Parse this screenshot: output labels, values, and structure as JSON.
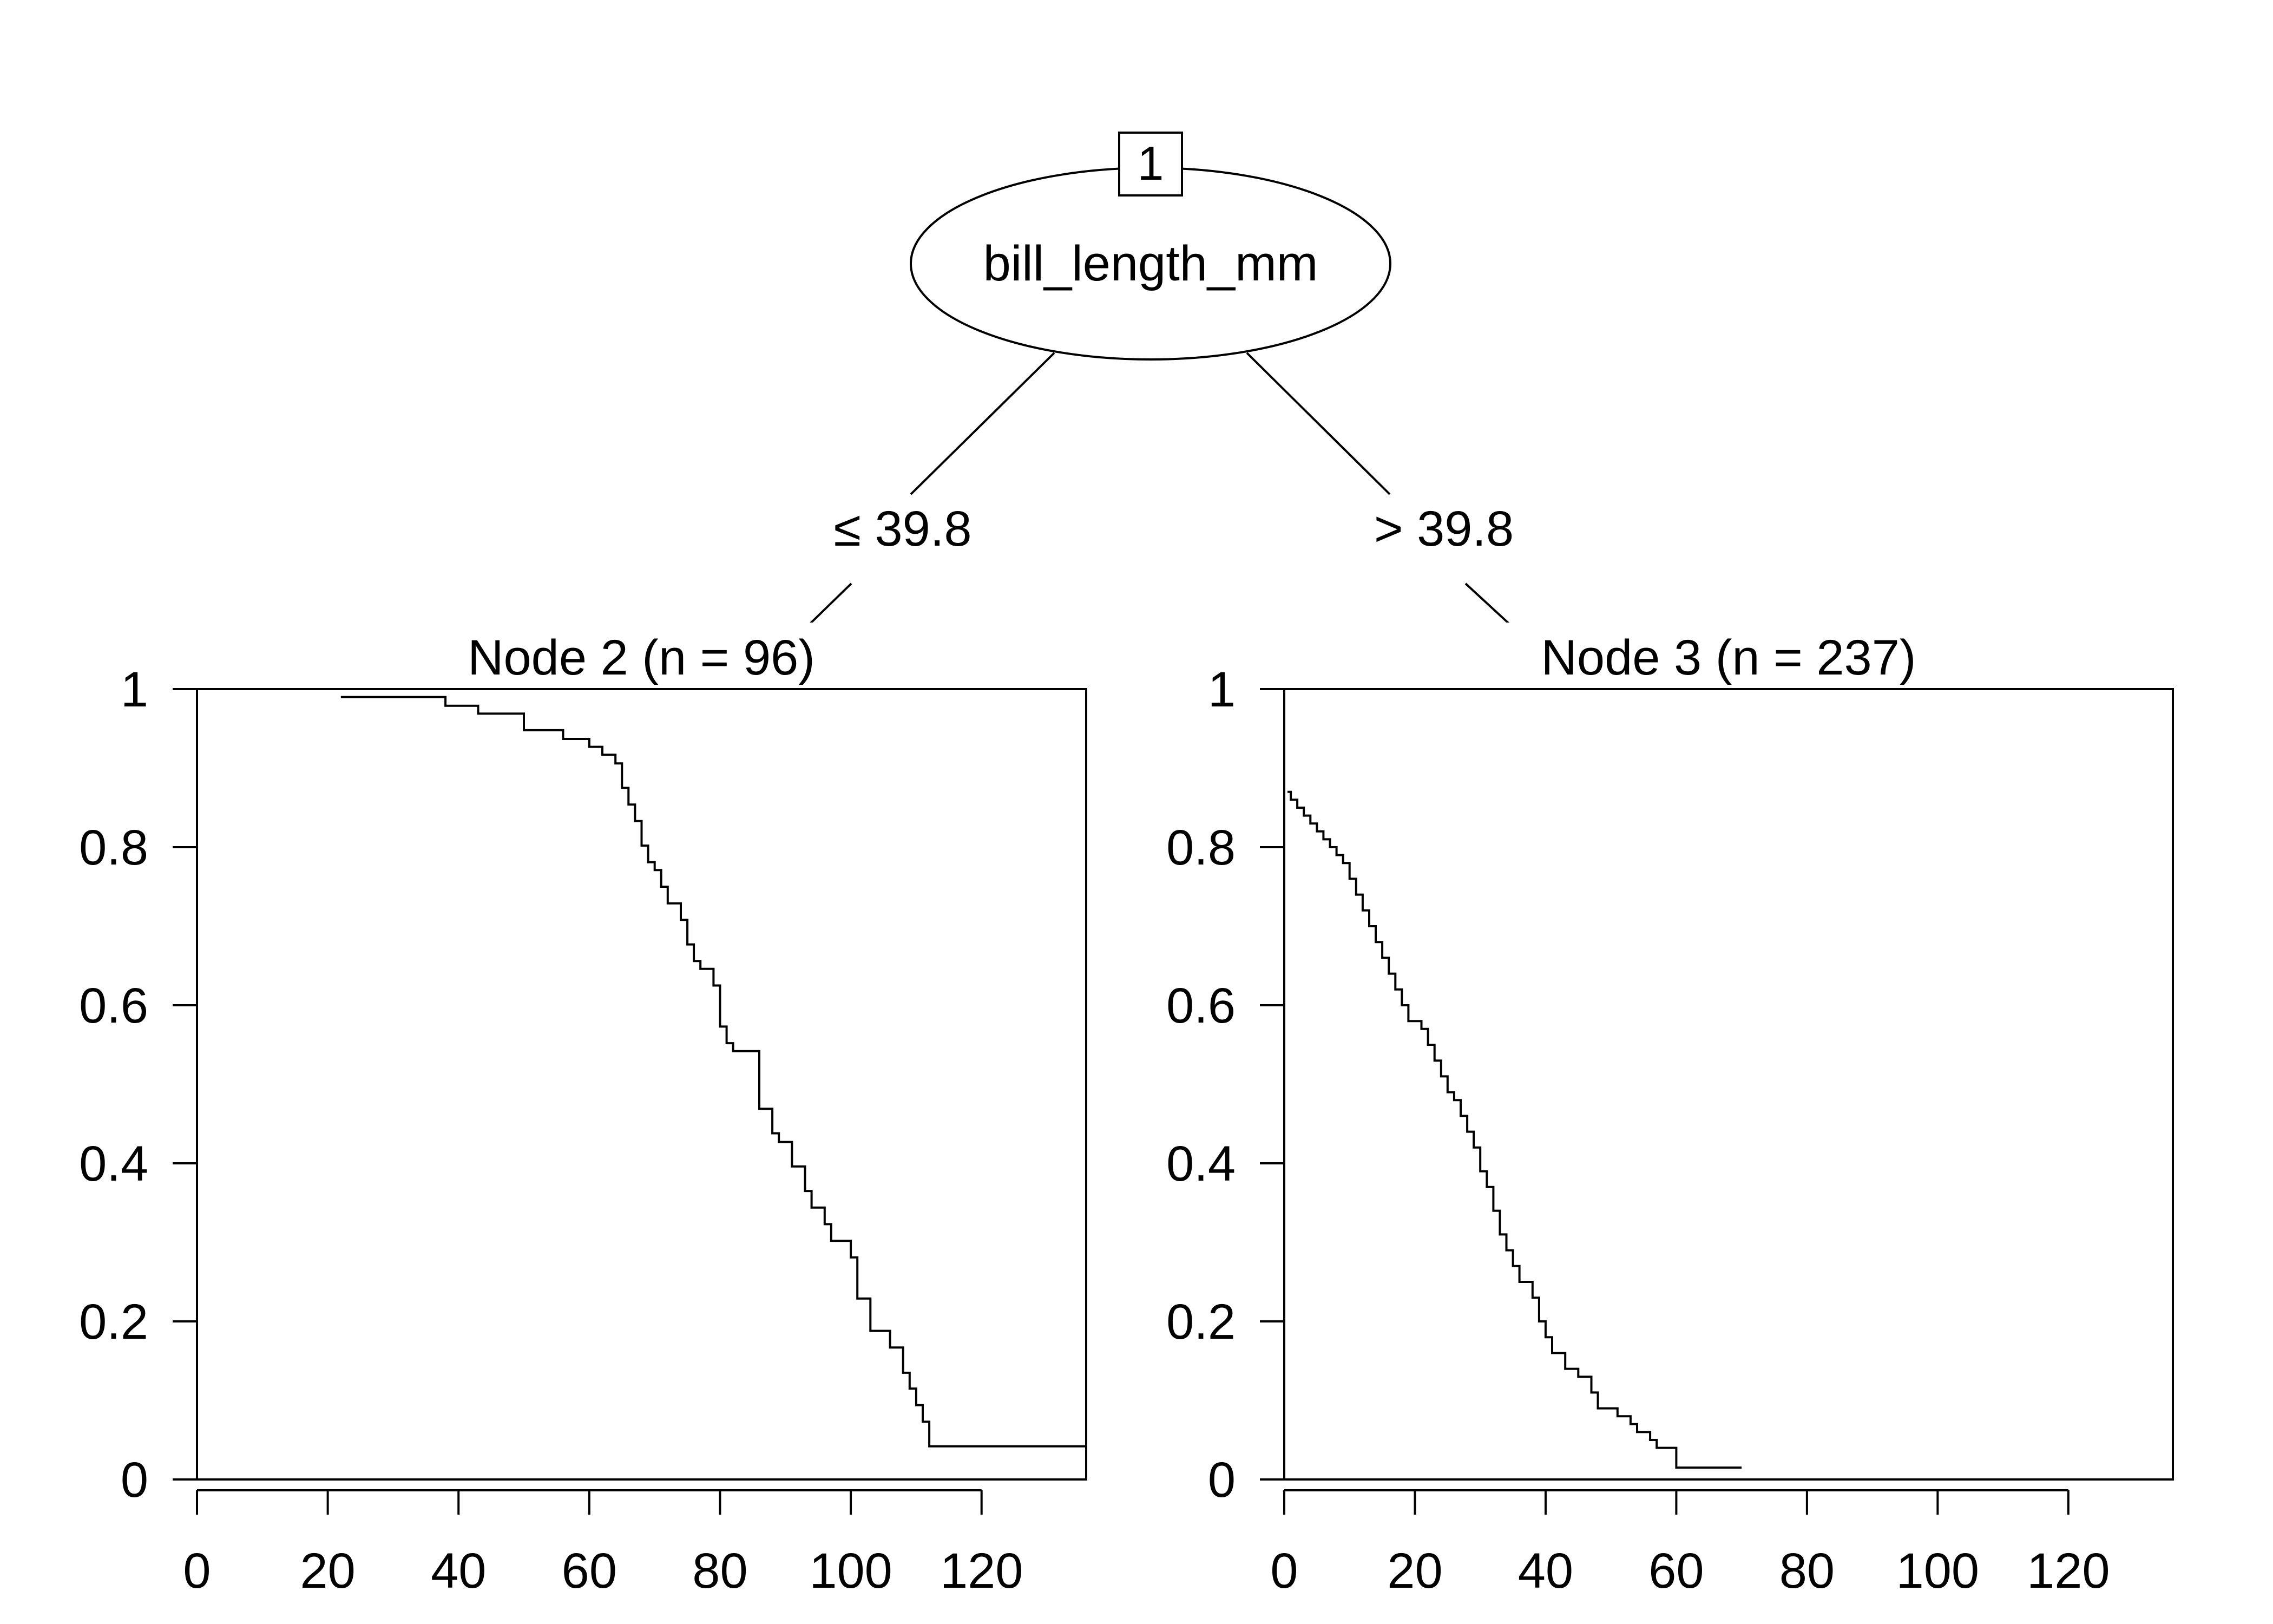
{
  "chart_data": {
    "type": "tree",
    "root": {
      "id": "1",
      "variable": "bill_length_mm"
    },
    "edges": [
      {
        "label": "≤ 39.8"
      },
      {
        "label": "> 39.8"
      }
    ],
    "panels": [
      {
        "type": "line",
        "title": "Node 2 (n = 96)",
        "xlim": [
          0,
          136
        ],
        "ylim": [
          0,
          1
        ],
        "xticks": [
          "0",
          "20",
          "40",
          "60",
          "80",
          "100",
          "120"
        ],
        "yticks": [
          "0",
          "0.2",
          "0.4",
          "0.6",
          "0.8",
          "1"
        ],
        "step_curve": [
          [
            22,
            0.99
          ],
          [
            38,
            0.99
          ],
          [
            38,
            0.979
          ],
          [
            43,
            0.979
          ],
          [
            43,
            0.969
          ],
          [
            50,
            0.969
          ],
          [
            50,
            0.948
          ],
          [
            56,
            0.948
          ],
          [
            56,
            0.937
          ],
          [
            60,
            0.937
          ],
          [
            60,
            0.927
          ],
          [
            62,
            0.927
          ],
          [
            62,
            0.917
          ],
          [
            64,
            0.917
          ],
          [
            64,
            0.906
          ],
          [
            65,
            0.906
          ],
          [
            65,
            0.875
          ],
          [
            66,
            0.875
          ],
          [
            66,
            0.854
          ],
          [
            67,
            0.854
          ],
          [
            67,
            0.833
          ],
          [
            68,
            0.833
          ],
          [
            68,
            0.802
          ],
          [
            69,
            0.802
          ],
          [
            69,
            0.781
          ],
          [
            70,
            0.781
          ],
          [
            70,
            0.771
          ],
          [
            71,
            0.771
          ],
          [
            71,
            0.75
          ],
          [
            72,
            0.75
          ],
          [
            72,
            0.729
          ],
          [
            74,
            0.729
          ],
          [
            74,
            0.708
          ],
          [
            75,
            0.708
          ],
          [
            75,
            0.677
          ],
          [
            76,
            0.677
          ],
          [
            76,
            0.656
          ],
          [
            77,
            0.656
          ],
          [
            77,
            0.646
          ],
          [
            79,
            0.646
          ],
          [
            79,
            0.625
          ],
          [
            80,
            0.625
          ],
          [
            80,
            0.573
          ],
          [
            81,
            0.573
          ],
          [
            81,
            0.552
          ],
          [
            82,
            0.552
          ],
          [
            82,
            0.542
          ],
          [
            86,
            0.542
          ],
          [
            86,
            0.469
          ],
          [
            88,
            0.469
          ],
          [
            88,
            0.438
          ],
          [
            89,
            0.438
          ],
          [
            89,
            0.427
          ],
          [
            91,
            0.427
          ],
          [
            91,
            0.396
          ],
          [
            93,
            0.396
          ],
          [
            93,
            0.365
          ],
          [
            94,
            0.365
          ],
          [
            94,
            0.344
          ],
          [
            96,
            0.344
          ],
          [
            96,
            0.323
          ],
          [
            97,
            0.323
          ],
          [
            97,
            0.302
          ],
          [
            100,
            0.302
          ],
          [
            100,
            0.281
          ],
          [
            101,
            0.281
          ],
          [
            101,
            0.229
          ],
          [
            103,
            0.229
          ],
          [
            103,
            0.188
          ],
          [
            106,
            0.188
          ],
          [
            106,
            0.167
          ],
          [
            108,
            0.167
          ],
          [
            108,
            0.135
          ],
          [
            109,
            0.135
          ],
          [
            109,
            0.115
          ],
          [
            110,
            0.115
          ],
          [
            110,
            0.094
          ],
          [
            111,
            0.094
          ],
          [
            111,
            0.073
          ],
          [
            112,
            0.073
          ],
          [
            112,
            0.042
          ],
          [
            136,
            0.042
          ]
        ]
      },
      {
        "type": "line",
        "title": "Node 3 (n = 237)",
        "xlim": [
          0,
          136
        ],
        "ylim": [
          0,
          1
        ],
        "xticks": [
          "0",
          "20",
          "40",
          "60",
          "80",
          "100",
          "120"
        ],
        "yticks": [
          "0",
          "0.2",
          "0.4",
          "0.6",
          "0.8",
          "1"
        ],
        "step_curve": [
          [
            0.5,
            0.87
          ],
          [
            1,
            0.87
          ],
          [
            1,
            0.86
          ],
          [
            2,
            0.86
          ],
          [
            2,
            0.85
          ],
          [
            3,
            0.85
          ],
          [
            3,
            0.84
          ],
          [
            4,
            0.84
          ],
          [
            4,
            0.83
          ],
          [
            5,
            0.83
          ],
          [
            5,
            0.82
          ],
          [
            6,
            0.82
          ],
          [
            6,
            0.81
          ],
          [
            7,
            0.81
          ],
          [
            7,
            0.8
          ],
          [
            8,
            0.8
          ],
          [
            8,
            0.79
          ],
          [
            9,
            0.79
          ],
          [
            9,
            0.78
          ],
          [
            10,
            0.78
          ],
          [
            10,
            0.76
          ],
          [
            11,
            0.76
          ],
          [
            11,
            0.74
          ],
          [
            12,
            0.74
          ],
          [
            12,
            0.72
          ],
          [
            13,
            0.72
          ],
          [
            13,
            0.7
          ],
          [
            14,
            0.7
          ],
          [
            14,
            0.68
          ],
          [
            15,
            0.68
          ],
          [
            15,
            0.66
          ],
          [
            16,
            0.66
          ],
          [
            16,
            0.64
          ],
          [
            17,
            0.64
          ],
          [
            17,
            0.62
          ],
          [
            18,
            0.62
          ],
          [
            18,
            0.6
          ],
          [
            19,
            0.6
          ],
          [
            19,
            0.58
          ],
          [
            21,
            0.58
          ],
          [
            21,
            0.57
          ],
          [
            22,
            0.57
          ],
          [
            22,
            0.55
          ],
          [
            23,
            0.55
          ],
          [
            23,
            0.53
          ],
          [
            24,
            0.53
          ],
          [
            24,
            0.51
          ],
          [
            25,
            0.51
          ],
          [
            25,
            0.49
          ],
          [
            26,
            0.49
          ],
          [
            26,
            0.48
          ],
          [
            27,
            0.48
          ],
          [
            27,
            0.46
          ],
          [
            28,
            0.46
          ],
          [
            28,
            0.44
          ],
          [
            29,
            0.44
          ],
          [
            29,
            0.42
          ],
          [
            30,
            0.42
          ],
          [
            30,
            0.39
          ],
          [
            31,
            0.39
          ],
          [
            31,
            0.37
          ],
          [
            32,
            0.37
          ],
          [
            32,
            0.34
          ],
          [
            33,
            0.34
          ],
          [
            33,
            0.31
          ],
          [
            34,
            0.31
          ],
          [
            34,
            0.29
          ],
          [
            35,
            0.29
          ],
          [
            35,
            0.27
          ],
          [
            36,
            0.27
          ],
          [
            36,
            0.25
          ],
          [
            38,
            0.25
          ],
          [
            38,
            0.23
          ],
          [
            39,
            0.23
          ],
          [
            39,
            0.2
          ],
          [
            40,
            0.2
          ],
          [
            40,
            0.18
          ],
          [
            41,
            0.18
          ],
          [
            41,
            0.16
          ],
          [
            43,
            0.16
          ],
          [
            43,
            0.14
          ],
          [
            45,
            0.14
          ],
          [
            45,
            0.13
          ],
          [
            47,
            0.13
          ],
          [
            47,
            0.11
          ],
          [
            48,
            0.11
          ],
          [
            48,
            0.09
          ],
          [
            51,
            0.09
          ],
          [
            51,
            0.08
          ],
          [
            53,
            0.08
          ],
          [
            53,
            0.07
          ],
          [
            54,
            0.07
          ],
          [
            54,
            0.06
          ],
          [
            56,
            0.06
          ],
          [
            56,
            0.05
          ],
          [
            57,
            0.05
          ],
          [
            57,
            0.04
          ],
          [
            60,
            0.04
          ],
          [
            60,
            0.015
          ],
          [
            70,
            0.015
          ]
        ]
      }
    ]
  }
}
